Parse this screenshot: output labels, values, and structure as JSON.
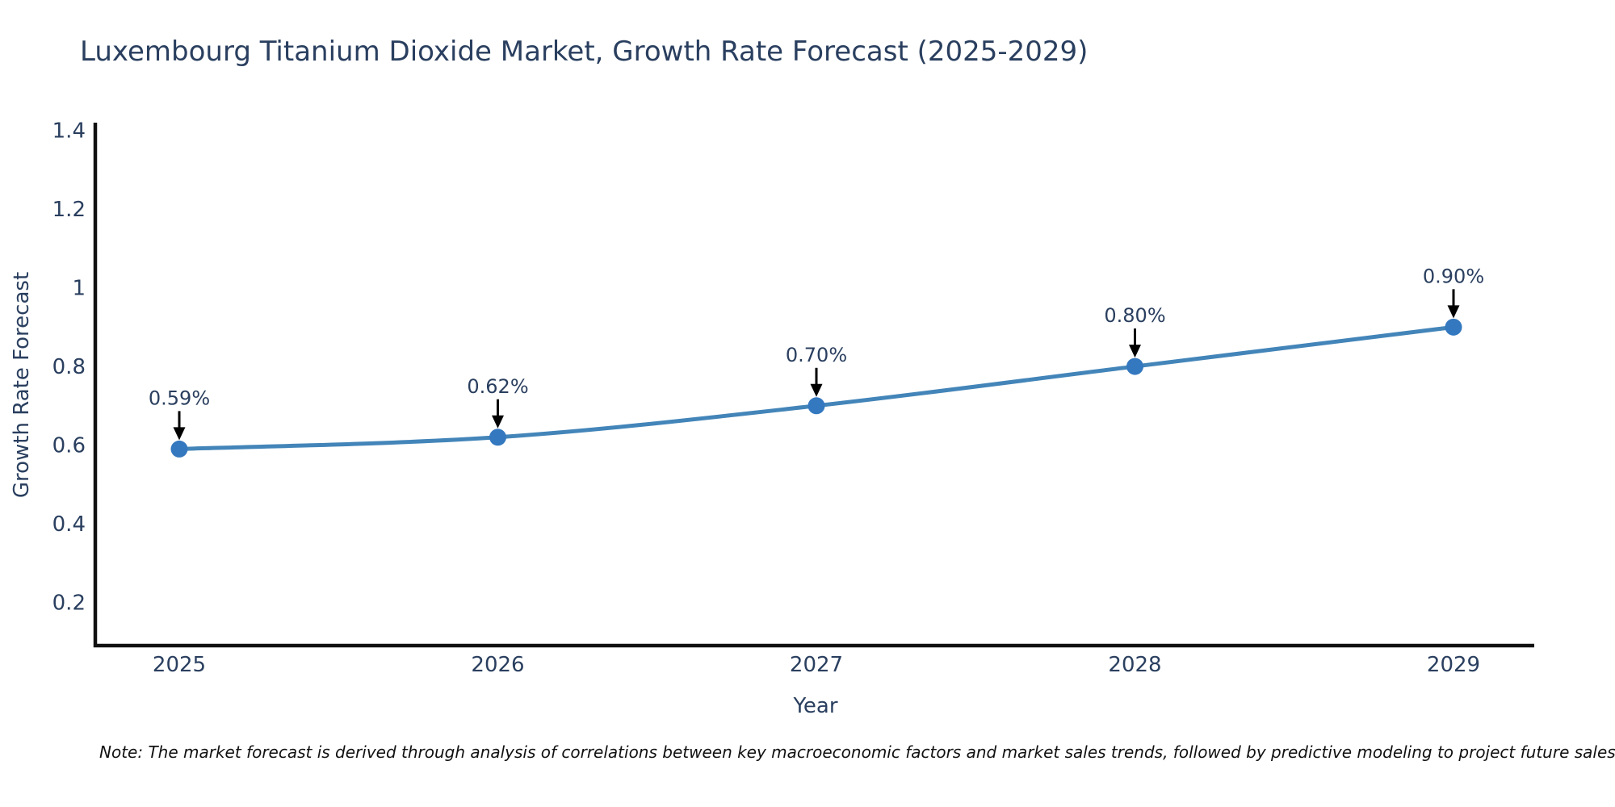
{
  "title": "Luxembourg Titanium Dioxide Market, Growth Rate Forecast (2025-2029)",
  "axes": {
    "x_title": "Year",
    "y_title": "Growth Rate Forecast"
  },
  "note": "Note: The market forecast is derived through analysis of correlations between key macroeconomic factors and market sales trends, followed by predictive modeling to project future sales",
  "colors": {
    "line": "#4385b9",
    "marker": "#3478bf",
    "axis_line": "#111111",
    "text": "#2a3f5f",
    "arrow": "#000000",
    "background": "#ffffff"
  },
  "chart_data": {
    "type": "line",
    "title": "Luxembourg Titanium Dioxide Market, Growth Rate Forecast (2025-2029)",
    "xlabel": "Year",
    "ylabel": "Growth Rate Forecast",
    "x": [
      2025,
      2026,
      2027,
      2028,
      2029
    ],
    "series": [
      {
        "name": "Growth Rate Forecast",
        "values": [
          0.59,
          0.62,
          0.7,
          0.8,
          0.9
        ],
        "point_labels": [
          "0.59%",
          "0.62%",
          "0.70%",
          "0.80%",
          "0.90%"
        ]
      }
    ],
    "xtick_labels": [
      "2025",
      "2026",
      "2027",
      "2028",
      "2029"
    ],
    "ytick_values": [
      0.2,
      0.4,
      0.6,
      0.8,
      1,
      1.2,
      1.4
    ],
    "ytick_labels": [
      "0.2",
      "0.4",
      "0.6",
      "0.8",
      "1",
      "1.2",
      "1.4"
    ],
    "ylim": [
      0.09,
      1.42
    ],
    "grid": false,
    "legend": "none",
    "line_shape": "spline",
    "markers": true,
    "annotation_style": "value label with downward black arrow above each point"
  }
}
